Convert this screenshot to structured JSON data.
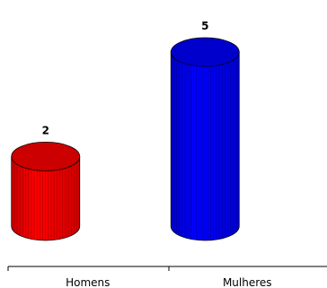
{
  "chart_data": {
    "type": "bar",
    "categories": [
      "Homens",
      "Mulheres"
    ],
    "values": [
      2,
      5
    ],
    "ylim": [
      0,
      5
    ],
    "colors": [
      "#ff0000",
      "#0000ff"
    ],
    "bar_shape": "cylinder",
    "grid": false,
    "legend": "none"
  }
}
